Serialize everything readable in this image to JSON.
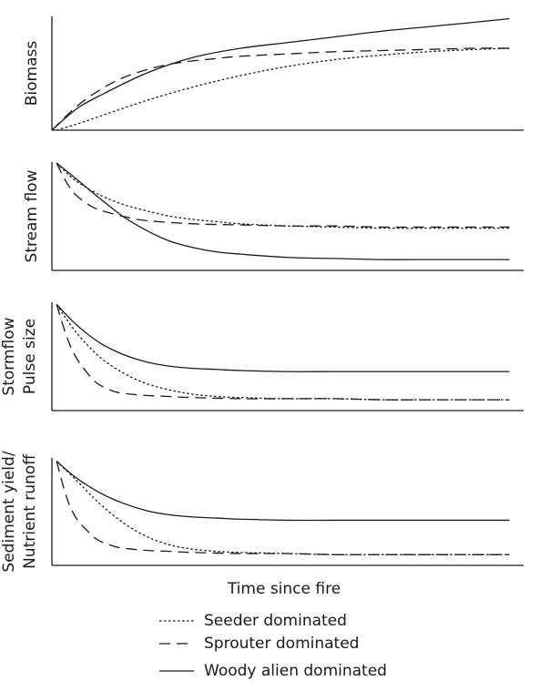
{
  "figure": {
    "xlabel": "Time since fire"
  },
  "legend": [
    {
      "label": "Seeder dominated",
      "style": "dotted"
    },
    {
      "label": "Sprouter dominated",
      "style": "dashed"
    },
    {
      "label": "Woody alien dominated",
      "style": "solid"
    }
  ],
  "chart_data": [
    {
      "type": "line",
      "ylabel": [
        "Biomass"
      ],
      "xlim": [
        0,
        1
      ],
      "ylim": [
        0,
        1
      ],
      "grid": false,
      "series": [
        {
          "name": "Seeder dominated",
          "style": "dotted",
          "x": [
            0.01,
            0.05,
            0.1,
            0.2,
            0.3,
            0.4,
            0.5,
            0.6,
            0.7,
            0.8,
            0.9,
            0.97
          ],
          "y": [
            0.0,
            0.05,
            0.12,
            0.26,
            0.38,
            0.48,
            0.56,
            0.62,
            0.66,
            0.69,
            0.71,
            0.72
          ]
        },
        {
          "name": "Sprouter dominated",
          "style": "dashed",
          "x": [
            0.0,
            0.05,
            0.1,
            0.15,
            0.2,
            0.25,
            0.3,
            0.35,
            0.4,
            0.5,
            0.6,
            0.7,
            0.8,
            0.9,
            0.97
          ],
          "y": [
            0.0,
            0.2,
            0.35,
            0.46,
            0.53,
            0.58,
            0.61,
            0.63,
            0.65,
            0.67,
            0.69,
            0.7,
            0.71,
            0.72,
            0.72
          ]
        },
        {
          "name": "Woody alien dominated",
          "style": "solid",
          "x": [
            0.0,
            0.05,
            0.1,
            0.2,
            0.3,
            0.4,
            0.5,
            0.6,
            0.7,
            0.8,
            0.9,
            0.97
          ],
          "y": [
            0.0,
            0.18,
            0.3,
            0.5,
            0.64,
            0.72,
            0.77,
            0.82,
            0.87,
            0.91,
            0.95,
            0.98
          ]
        }
      ]
    },
    {
      "type": "line",
      "ylabel": [
        "Stream flow"
      ],
      "xlim": [
        0,
        1
      ],
      "ylim": [
        0,
        1
      ],
      "grid": false,
      "series": [
        {
          "name": "Seeder dominated",
          "style": "dotted",
          "x": [
            0.01,
            0.05,
            0.1,
            0.15,
            0.2,
            0.25,
            0.3,
            0.35,
            0.4,
            0.5,
            0.6,
            0.7,
            0.8,
            0.9,
            0.97
          ],
          "y": [
            0.99,
            0.83,
            0.7,
            0.61,
            0.55,
            0.5,
            0.47,
            0.45,
            0.43,
            0.41,
            0.4,
            0.39,
            0.39,
            0.39,
            0.39
          ]
        },
        {
          "name": "Sprouter dominated",
          "style": "dashed",
          "x": [
            0.01,
            0.03,
            0.05,
            0.08,
            0.1,
            0.15,
            0.2,
            0.3,
            0.4,
            0.5,
            0.6,
            0.7,
            0.8,
            0.9,
            0.97
          ],
          "y": [
            0.99,
            0.82,
            0.7,
            0.6,
            0.56,
            0.5,
            0.46,
            0.43,
            0.42,
            0.41,
            0.41,
            0.4,
            0.4,
            0.4,
            0.4
          ]
        },
        {
          "name": "Woody alien dominated",
          "style": "solid",
          "x": [
            0.01,
            0.05,
            0.1,
            0.15,
            0.2,
            0.25,
            0.3,
            0.35,
            0.4,
            0.5,
            0.6,
            0.7,
            0.8,
            0.9,
            0.97
          ],
          "y": [
            0.99,
            0.85,
            0.67,
            0.5,
            0.37,
            0.27,
            0.21,
            0.17,
            0.15,
            0.12,
            0.11,
            0.1,
            0.1,
            0.1,
            0.1
          ]
        }
      ]
    },
    {
      "type": "line",
      "ylabel": [
        "Stormflow",
        "Pulse size"
      ],
      "xlim": [
        0,
        1
      ],
      "ylim": [
        0,
        1
      ],
      "grid": false,
      "series": [
        {
          "name": "Seeder dominated",
          "style": "dotted",
          "x": [
            0.01,
            0.05,
            0.1,
            0.15,
            0.2,
            0.25,
            0.3,
            0.35,
            0.4,
            0.5,
            0.6,
            0.7,
            0.8,
            0.9,
            0.97
          ],
          "y": [
            0.98,
            0.73,
            0.5,
            0.35,
            0.25,
            0.19,
            0.15,
            0.13,
            0.12,
            0.11,
            0.11,
            0.1,
            0.1,
            0.1,
            0.1
          ]
        },
        {
          "name": "Sprouter dominated",
          "style": "dashed",
          "x": [
            0.01,
            0.03,
            0.05,
            0.08,
            0.1,
            0.13,
            0.15,
            0.2,
            0.25,
            0.3,
            0.4,
            0.5,
            0.6,
            0.7,
            0.8,
            0.9,
            0.97
          ],
          "y": [
            0.98,
            0.7,
            0.5,
            0.32,
            0.24,
            0.18,
            0.16,
            0.14,
            0.13,
            0.12,
            0.11,
            0.11,
            0.11,
            0.1,
            0.1,
            0.1,
            0.1
          ]
        },
        {
          "name": "Woody alien dominated",
          "style": "solid",
          "x": [
            0.01,
            0.05,
            0.1,
            0.15,
            0.2,
            0.25,
            0.3,
            0.35,
            0.4,
            0.5,
            0.6,
            0.7,
            0.8,
            0.9,
            0.97
          ],
          "y": [
            0.98,
            0.8,
            0.63,
            0.52,
            0.45,
            0.41,
            0.39,
            0.38,
            0.37,
            0.36,
            0.36,
            0.36,
            0.36,
            0.36,
            0.36
          ]
        }
      ]
    },
    {
      "type": "line",
      "ylabel": [
        "Sediment yield/",
        "Nutrient runoff"
      ],
      "xlim": [
        0,
        1
      ],
      "ylim": [
        0,
        1
      ],
      "grid": false,
      "series": [
        {
          "name": "Seeder dominated",
          "style": "dotted",
          "x": [
            0.01,
            0.05,
            0.1,
            0.15,
            0.2,
            0.25,
            0.3,
            0.35,
            0.4,
            0.5,
            0.6,
            0.7,
            0.8,
            0.9,
            0.97
          ],
          "y": [
            0.97,
            0.8,
            0.58,
            0.4,
            0.27,
            0.19,
            0.15,
            0.13,
            0.12,
            0.11,
            0.1,
            0.1,
            0.1,
            0.1,
            0.1
          ]
        },
        {
          "name": "Sprouter dominated",
          "style": "dashed",
          "x": [
            0.01,
            0.03,
            0.05,
            0.08,
            0.1,
            0.13,
            0.15,
            0.2,
            0.25,
            0.3,
            0.4,
            0.5,
            0.6,
            0.7,
            0.8,
            0.9,
            0.97
          ],
          "y": [
            0.97,
            0.65,
            0.45,
            0.3,
            0.23,
            0.18,
            0.16,
            0.14,
            0.13,
            0.12,
            0.11,
            0.11,
            0.1,
            0.1,
            0.1,
            0.1,
            0.1
          ]
        },
        {
          "name": "Woody alien dominated",
          "style": "solid",
          "x": [
            0.01,
            0.05,
            0.1,
            0.15,
            0.2,
            0.25,
            0.3,
            0.35,
            0.4,
            0.5,
            0.6,
            0.7,
            0.8,
            0.9,
            0.97
          ],
          "y": [
            0.97,
            0.82,
            0.68,
            0.58,
            0.51,
            0.47,
            0.45,
            0.44,
            0.43,
            0.42,
            0.42,
            0.42,
            0.42,
            0.42,
            0.42
          ]
        }
      ]
    }
  ]
}
